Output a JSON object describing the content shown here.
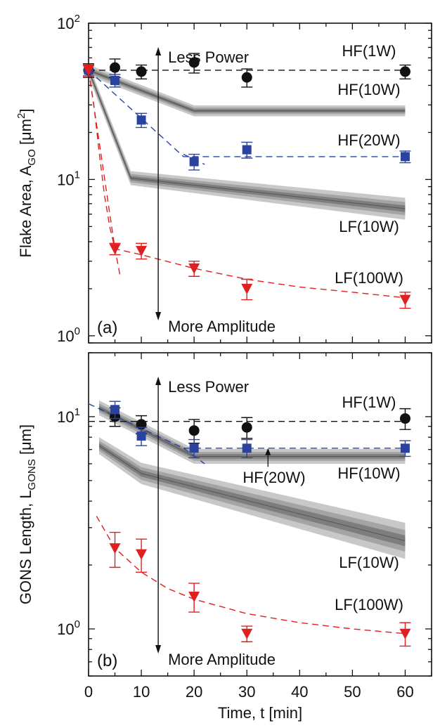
{
  "chart_data": [
    {
      "type": "scatter",
      "panel_label": "(a)",
      "ylabel": "Flake Area, A",
      "ylabel_sub": "GO",
      "ylabel_unit_pre": " [μm",
      "ylabel_unit_sup": "2",
      "ylabel_unit_post": "]",
      "yscale": "log",
      "ylim": [
        0.9,
        100
      ],
      "xlim": [
        0,
        65
      ],
      "x_ticks": [
        "0",
        "10",
        "20",
        "30",
        "40",
        "50",
        "60"
      ],
      "y_ticks": [
        {
          "base": "10",
          "exp": "0"
        },
        {
          "base": "10",
          "exp": "1"
        },
        {
          "base": "10",
          "exp": "2"
        }
      ],
      "annotations": {
        "top": "Less Power",
        "bottom": "More Amplitude",
        "series_labels": [
          "HF(1W)",
          "HF(10W)",
          "HF(20W)",
          "LF(10W)",
          "LF(100W)"
        ]
      },
      "series": [
        {
          "name": "HF(1W)",
          "marker": "circle",
          "color": "#111111",
          "x": [
            0,
            5,
            10,
            20,
            30,
            60
          ],
          "y": [
            50,
            52,
            49,
            56,
            45,
            49
          ],
          "err": [
            5,
            7,
            5,
            8,
            6,
            5
          ],
          "fit": {
            "style": "dashed",
            "x": [
              0,
              60
            ],
            "y": [
              50,
              50
            ]
          }
        },
        {
          "name": "HF(20W)",
          "marker": "square",
          "color": "#2a43a0",
          "x": [
            0,
            5,
            10,
            20,
            30,
            60
          ],
          "y": [
            50,
            43,
            24,
            13,
            15.5,
            14
          ],
          "err": [
            4,
            4,
            2.5,
            1.5,
            1.8,
            1.2
          ],
          "fit": {
            "style": "dashed",
            "x": [
              0,
              18,
              22,
              60
            ],
            "y": [
              50,
              14,
              14,
              14
            ]
          },
          "fit2": {
            "style": "dashed",
            "x": [
              18,
              22
            ],
            "y": [
              14.5,
              12.5
            ]
          }
        },
        {
          "name": "LF(100W)",
          "marker": "triangle-down",
          "color": "#e02020",
          "x": [
            0,
            5,
            10,
            20,
            30,
            60
          ],
          "y": [
            50,
            3.6,
            3.5,
            2.7,
            2.0,
            1.7
          ],
          "err": [
            4,
            0.3,
            0.4,
            0.3,
            0.3,
            0.2
          ],
          "fit": {
            "style": "dashed",
            "x": [
              0,
              5,
              10,
              20,
              30,
              40,
              50,
              60
            ],
            "y": [
              50,
              3.6,
              3.3,
              2.7,
              2.3,
              2.05,
              1.9,
              1.75
            ]
          },
          "fit2": {
            "style": "dashed",
            "x": [
              0,
              1,
              2,
              3,
              4,
              5,
              6
            ],
            "y": [
              50,
              30,
              15,
              8,
              5,
              3.6,
              2.4
            ]
          }
        }
      ],
      "bands": [
        {
          "name": "HF(10W)",
          "x": [
            0,
            20,
            60
          ],
          "y": [
            50,
            27.5,
            27.5
          ],
          "width": [
            0.035,
            0.035,
            0.035
          ]
        },
        {
          "name": "LF(10W)",
          "x": [
            0,
            8,
            60
          ],
          "y": [
            50,
            10.2,
            6.5
          ],
          "width": [
            0.04,
            0.045,
            0.07
          ]
        }
      ]
    },
    {
      "type": "scatter",
      "panel_label": "(b)",
      "ylabel": "GONS Length, L",
      "ylabel_sub": "GONS",
      "ylabel_unit_pre": " [μm]",
      "yscale": "log",
      "ylim": [
        0.6,
        20
      ],
      "xlim": [
        0,
        65
      ],
      "x_ticks": [
        "0",
        "10",
        "20",
        "30",
        "40",
        "50",
        "60"
      ],
      "y_ticks": [
        {
          "base": "10",
          "exp": "0"
        },
        {
          "base": "10",
          "exp": "1"
        }
      ],
      "xlabel": "Time, t [min]",
      "annotations": {
        "top": "Less Power",
        "bottom": "More Amplitude",
        "series_labels": [
          "HF(1W)",
          "HF(20W)",
          "HF(10W)",
          "LF(10W)",
          "LF(100W)"
        ]
      },
      "series": [
        {
          "name": "HF(1W)",
          "marker": "circle",
          "color": "#111111",
          "x": [
            5,
            10,
            20,
            30,
            60
          ],
          "y": [
            10,
            9.2,
            8.6,
            8.9,
            9.8
          ],
          "err": [
            1.0,
            0.9,
            1.1,
            1.0,
            1.1
          ],
          "fit": {
            "style": "dashed",
            "x": [
              0,
              60
            ],
            "y": [
              9.5,
              9.5
            ]
          }
        },
        {
          "name": "HF(20W)",
          "marker": "square",
          "color": "#2a43a0",
          "x": [
            5,
            10,
            20,
            30,
            60
          ],
          "y": [
            10.8,
            8.1,
            7.1,
            7.1,
            7.1
          ],
          "err": [
            1.0,
            0.8,
            0.7,
            0.7,
            0.6
          ],
          "fit": {
            "style": "dashed",
            "x": [
              0,
              18,
              60
            ],
            "y": [
              11.5,
              7.1,
              7.1
            ]
          },
          "fit2": {
            "style": "dashed",
            "x": [
              18,
              22
            ],
            "y": [
              7.1,
              6.0
            ]
          }
        },
        {
          "name": "LF(100W)",
          "marker": "triangle-down",
          "color": "#e02020",
          "x": [
            5,
            10,
            20,
            30,
            60
          ],
          "y": [
            2.4,
            2.25,
            1.42,
            0.95,
            0.95
          ],
          "err": [
            0.45,
            0.4,
            0.22,
            0.08,
            0.12
          ],
          "fit": {
            "style": "dashed",
            "x": [
              1.5,
              5,
              10,
              15,
              20,
              30,
              40,
              50,
              60
            ],
            "y": [
              3.4,
              2.4,
              1.85,
              1.55,
              1.38,
              1.18,
              1.07,
              1.0,
              0.95
            ]
          }
        }
      ],
      "bands": [
        {
          "name": "HF(10W)",
          "x": [
            2,
            20,
            60
          ],
          "y": [
            11.0,
            6.5,
            6.5
          ],
          "width": [
            0.035,
            0.035,
            0.035
          ]
        },
        {
          "name": "LF(10W)",
          "x": [
            2,
            10,
            60
          ],
          "y": [
            7.3,
            5.4,
            2.6
          ],
          "width": [
            0.04,
            0.05,
            0.085
          ]
        }
      ]
    }
  ]
}
